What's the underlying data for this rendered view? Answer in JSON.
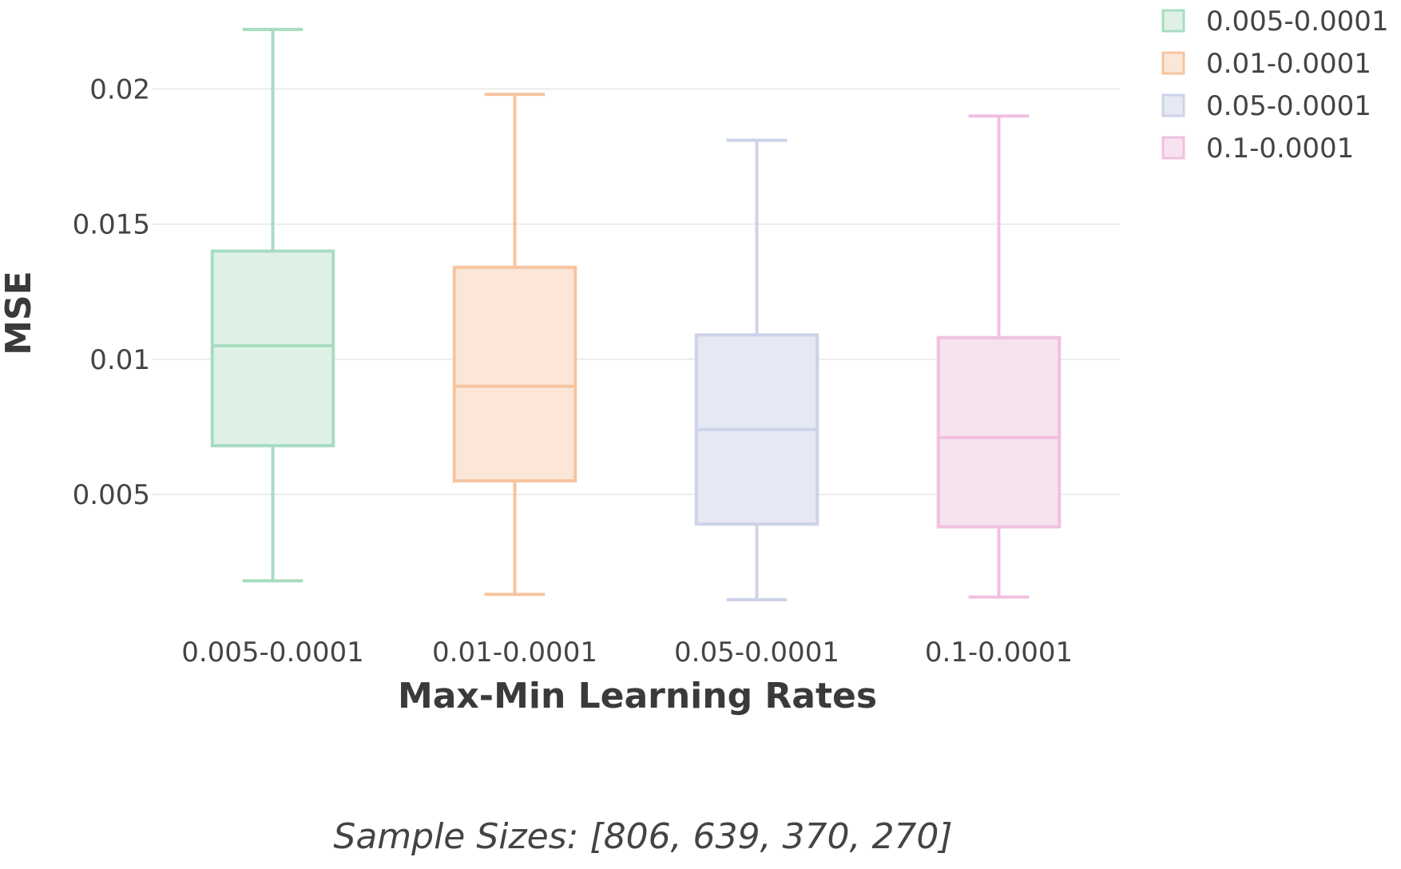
{
  "chart_data": {
    "type": "box",
    "xlabel": "Max-Min Learning Rates",
    "ylabel": "MSE",
    "caption": "Sample Sizes: [806, 639, 370, 270]",
    "categories": [
      "0.005-0.0001",
      "0.01-0.0001",
      "0.05-0.0001",
      "0.1-0.0001"
    ],
    "yticks": [
      {
        "value": 0.005,
        "label": "0.005"
      },
      {
        "value": 0.01,
        "label": "0.01"
      },
      {
        "value": 0.015,
        "label": "0.015"
      },
      {
        "value": 0.02,
        "label": "0.02"
      }
    ],
    "ylim": [
      0.0003,
      0.0227
    ],
    "grid": true,
    "legend_position": "top-right",
    "series": [
      {
        "name": "0.005-0.0001",
        "color": "#a8dcc0",
        "fill": "#dff1e7",
        "min": 0.0018,
        "q1": 0.0068,
        "median": 0.0105,
        "q3": 0.014,
        "max": 0.0222
      },
      {
        "name": "0.01-0.0001",
        "color": "#f6c4a0",
        "fill": "#fbe6d8",
        "min": 0.0013,
        "q1": 0.0055,
        "median": 0.009,
        "q3": 0.0134,
        "max": 0.0198
      },
      {
        "name": "0.05-0.0001",
        "color": "#cdd3e8",
        "fill": "#e6e9f3",
        "min": 0.0011,
        "q1": 0.0039,
        "median": 0.0074,
        "q3": 0.0109,
        "max": 0.0181
      },
      {
        "name": "0.1-0.0001",
        "color": "#f0c0e0",
        "fill": "#f7e3f0",
        "min": 0.0012,
        "q1": 0.0038,
        "median": 0.0071,
        "q3": 0.0108,
        "max": 0.019
      }
    ]
  }
}
